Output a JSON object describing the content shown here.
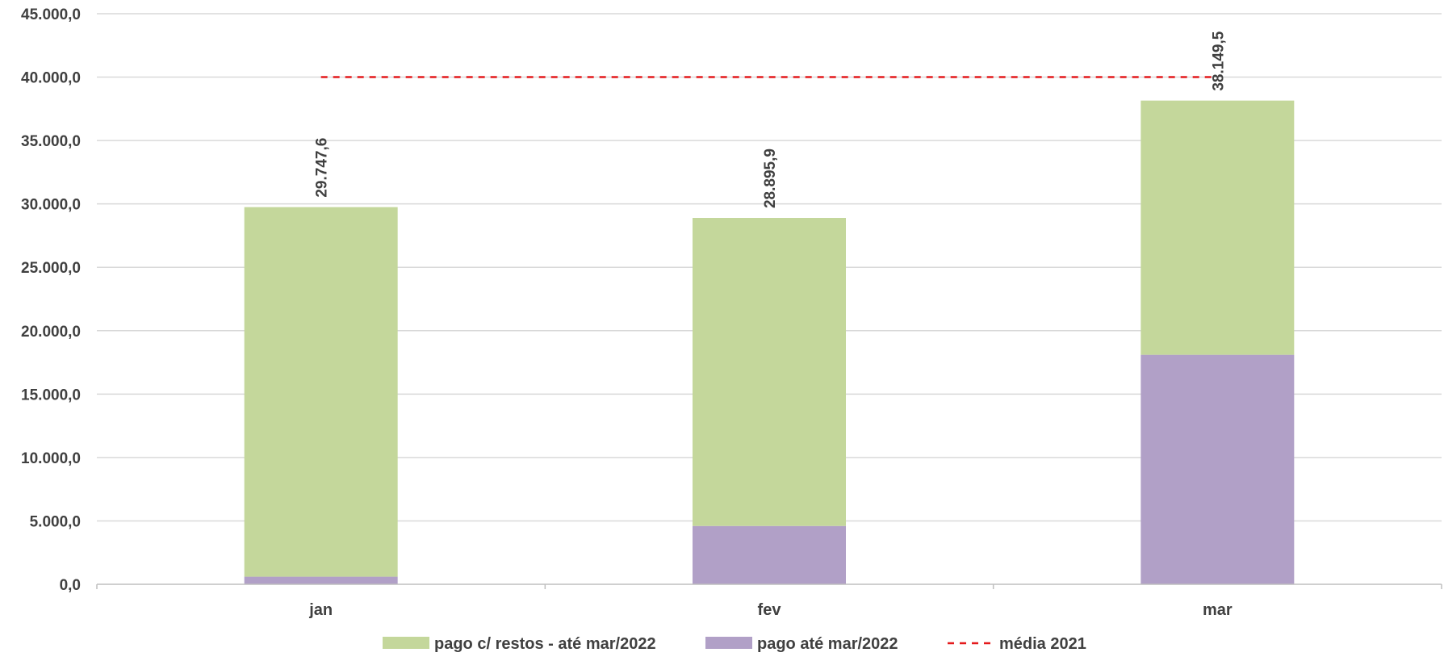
{
  "chart_data": {
    "type": "bar",
    "stacked": true,
    "categories": [
      "jan",
      "fev",
      "mar"
    ],
    "series": [
      {
        "name": "pago até mar/2022",
        "values": [
          600,
          4600,
          18100
        ],
        "color": "#b1a0c7"
      },
      {
        "name": "pago c/ restos - até mar/2022",
        "values": [
          29147.6,
          24295.9,
          20049.5
        ],
        "color": "#c4d79b"
      }
    ],
    "line_series": {
      "name": "média 2021",
      "value": 40000,
      "color": "#e41a1c",
      "style": "dashed"
    },
    "total_labels": [
      "29.747,6",
      "28.895,9",
      "38.149,5"
    ],
    "ylim": [
      0,
      45000
    ],
    "yticks": [
      0,
      5000,
      10000,
      15000,
      20000,
      25000,
      30000,
      35000,
      40000,
      45000
    ],
    "ytick_labels": [
      "0,0",
      "5.000,0",
      "10.000,0",
      "15.000,0",
      "20.000,0",
      "25.000,0",
      "30.000,0",
      "35.000,0",
      "40.000,0",
      "45.000,0"
    ],
    "grid": true,
    "legend": {
      "position": "bottom",
      "entries": [
        "pago c/ restos - até mar/2022",
        "pago até mar/2022",
        "média 2021"
      ]
    },
    "title": "",
    "xlabel": "",
    "ylabel": ""
  }
}
